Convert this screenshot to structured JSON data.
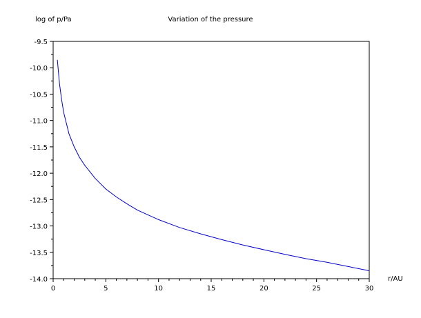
{
  "chart_data": {
    "type": "line",
    "title": "Variation of the pressure",
    "xlabel": "r/AU",
    "ylabel": "log of p/Pa",
    "xlim": [
      0,
      30
    ],
    "ylim": [
      -14.0,
      -9.5
    ],
    "xticks": [
      0,
      5,
      10,
      15,
      20,
      25,
      30
    ],
    "xtick_labels": [
      "0",
      "5",
      "10",
      "15",
      "20",
      "25",
      "30"
    ],
    "yticks": [
      -9.5,
      -10.0,
      -10.5,
      -11.0,
      -11.5,
      -12.0,
      -12.5,
      -13.0,
      -13.5,
      -14.0
    ],
    "ytick_labels": [
      "-9.5",
      "-10.0",
      "-10.5",
      "-11.0",
      "-11.5",
      "-12.0",
      "-12.5",
      "-13.0",
      "-13.5",
      "-14.0"
    ],
    "grid": false,
    "series": [
      {
        "color": "#0000cc",
        "x": [
          0.4,
          0.6,
          0.8,
          1.0,
          1.5,
          2.0,
          2.5,
          3.0,
          4.0,
          5.0,
          6.0,
          7.0,
          8.0,
          10.0,
          12.0,
          14.0,
          16.0,
          18.0,
          20.0,
          22.0,
          24.0,
          26.0,
          28.0,
          30.0
        ],
        "y": [
          -9.85,
          -10.3,
          -10.6,
          -10.85,
          -11.25,
          -11.5,
          -11.7,
          -11.85,
          -12.1,
          -12.3,
          -12.45,
          -12.58,
          -12.7,
          -12.88,
          -13.03,
          -13.15,
          -13.26,
          -13.36,
          -13.45,
          -13.54,
          -13.62,
          -13.69,
          -13.77,
          -13.85
        ]
      }
    ]
  }
}
